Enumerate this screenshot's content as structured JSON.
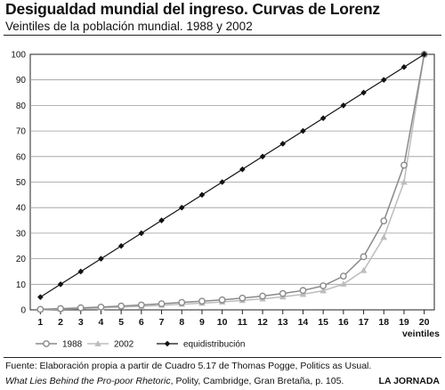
{
  "header": {
    "title": "Desigualdad mundial del ingreso. Curvas de Lorenz",
    "subtitle": "Veintiles de la población mundial. 1988 y 2002"
  },
  "footer": {
    "source_line1": "Fuente: Elaboración propia a partir de Cuadro 5.17 de Thomas Pogge, Politics as Usual.",
    "source_line2_italic": "What Lies Behind the Pro-poor Rhetoric",
    "source_line2_rest": ", Polity, Cambridge, Gran Bretaña, p. 105.",
    "brand": "LA JORNADA"
  },
  "colors": {
    "s1988": "#8a8a8a",
    "s2002": "#bdbdbd",
    "equi": "#111111",
    "grid": "#9a9a9a"
  },
  "chart_data": {
    "type": "line",
    "title": "Desigualdad mundial del ingreso. Curvas de Lorenz",
    "subtitle": "Veintiles de la población mundial. 1988 y 2002",
    "xlabel": "veintiles",
    "ylabel": "",
    "x": [
      "1",
      "2",
      "3",
      "4",
      "5",
      "6",
      "7",
      "8",
      "9",
      "10",
      "11",
      "12",
      "13",
      "14",
      "15",
      "16",
      "17",
      "18",
      "19",
      "20"
    ],
    "ylim": [
      0,
      100
    ],
    "yticks": [
      "0",
      "10",
      "20",
      "30",
      "40",
      "50",
      "60",
      "70",
      "80",
      "90",
      "100"
    ],
    "grid": true,
    "legend_position": "bottom",
    "series": [
      {
        "name": "1988",
        "marker": "circle",
        "values": [
          0.2,
          0.5,
          0.8,
          1.1,
          1.5,
          1.9,
          2.4,
          2.9,
          3.4,
          3.9,
          4.6,
          5.4,
          6.4,
          7.6,
          9.4,
          13.2,
          20.8,
          34.8,
          56.6,
          100
        ]
      },
      {
        "name": "2002",
        "marker": "triangle",
        "values": [
          0.1,
          0.3,
          0.5,
          0.8,
          1.1,
          1.4,
          1.8,
          2.2,
          2.6,
          3.1,
          3.7,
          4.3,
          5.1,
          6.1,
          7.5,
          10.1,
          15.4,
          28.4,
          50.0,
          100
        ]
      },
      {
        "name": "equidistribución",
        "marker": "diamond",
        "values": [
          5,
          10,
          15,
          20,
          25,
          30,
          35,
          40,
          45,
          50,
          55,
          60,
          65,
          70,
          75,
          80,
          85,
          90,
          95,
          100
        ]
      }
    ]
  }
}
